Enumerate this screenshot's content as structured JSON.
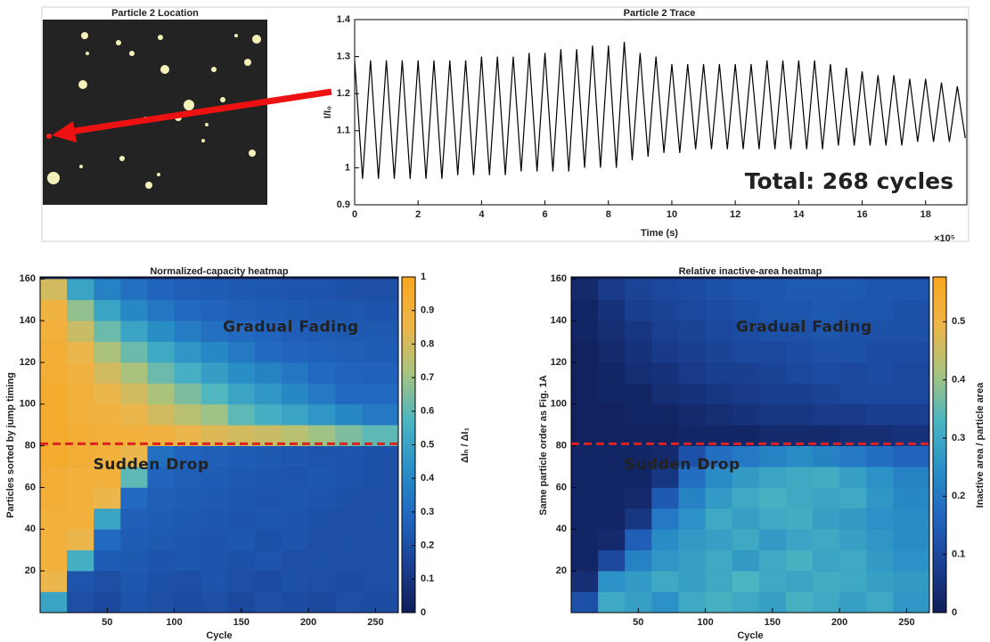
{
  "chart_data": [
    {
      "type": "image",
      "title": "Particle 2 Location"
    },
    {
      "type": "line",
      "title": "Particle 2 Trace",
      "x_label": "Time (s)",
      "y_label": "I/I₀",
      "x_scale_label": "×10⁵",
      "annotation": "Total: 268 cycles",
      "xlim": [
        0,
        19.3
      ],
      "ylim": [
        0.9,
        1.4
      ],
      "xticks": [
        0,
        2,
        4,
        6,
        8,
        10,
        12,
        14,
        16,
        18
      ],
      "yticks": [
        0.9,
        1,
        1.1,
        1.2,
        1.3,
        1.4
      ],
      "color": "#000000",
      "x": [
        0,
        0.25,
        0.5,
        0.75,
        1,
        1.25,
        1.5,
        1.75,
        2,
        2.25,
        2.5,
        2.75,
        3,
        3.25,
        3.5,
        3.75,
        4,
        4.25,
        4.5,
        4.75,
        5,
        5.25,
        5.5,
        5.75,
        6,
        6.25,
        6.5,
        6.75,
        7,
        7.25,
        7.5,
        7.75,
        8,
        8.25,
        8.5,
        8.75,
        9,
        9.25,
        9.5,
        9.75,
        10,
        10.25,
        10.5,
        10.75,
        11,
        11.25,
        11.5,
        11.75,
        12,
        12.25,
        12.5,
        12.75,
        13,
        13.25,
        13.5,
        13.75,
        14,
        14.25,
        14.5,
        14.75,
        15,
        15.25,
        15.5,
        15.75,
        16,
        16.25,
        16.5,
        16.75,
        17,
        17.25,
        17.5,
        17.75,
        18,
        18.25,
        18.5,
        18.75,
        19,
        19.25
      ],
      "values": [
        1.29,
        0.97,
        1.29,
        0.97,
        1.29,
        0.97,
        1.29,
        0.97,
        1.29,
        0.97,
        1.29,
        0.97,
        1.29,
        0.98,
        1.29,
        0.98,
        1.3,
        0.98,
        1.3,
        0.98,
        1.3,
        0.99,
        1.31,
        0.99,
        1.31,
        0.99,
        1.32,
        0.99,
        1.32,
        1,
        1.33,
        1,
        1.33,
        1,
        1.34,
        1.02,
        1.31,
        1.03,
        1.3,
        1.04,
        1.28,
        1.04,
        1.28,
        1.05,
        1.28,
        1.05,
        1.28,
        1.05,
        1.28,
        1.05,
        1.28,
        1.05,
        1.29,
        1.05,
        1.29,
        1.05,
        1.29,
        1.05,
        1.29,
        1.05,
        1.28,
        1.06,
        1.27,
        1.06,
        1.26,
        1.06,
        1.25,
        1.06,
        1.25,
        1.06,
        1.24,
        1.07,
        1.24,
        1.07,
        1.23,
        1.07,
        1.22,
        1.08
      ]
    },
    {
      "type": "heatmap",
      "title": "Normalized-capacity heatmap",
      "x_label": "Cycle",
      "y_label": "Particles sorted by jump timing",
      "colorbar_label": "ΔIₙ / ΔI₁",
      "xlim": [
        0,
        267
      ],
      "ylim": [
        0,
        161
      ],
      "xticks": [
        50,
        100,
        150,
        200,
        250
      ],
      "yticks": [
        20,
        40,
        60,
        80,
        100,
        120,
        140,
        160
      ],
      "clim": [
        0,
        1
      ],
      "cticks": [
        0,
        0.1,
        0.2,
        0.3,
        0.4,
        0.5,
        0.6,
        0.7,
        0.8,
        0.9,
        1
      ],
      "colormap": [
        "#101e58",
        "#1a3f92",
        "#2166c0",
        "#2a90c6",
        "#4bb5c2",
        "#a8c37f",
        "#eeb548",
        "#f8a620"
      ],
      "reference_line": {
        "value": 81,
        "color": "#e02020"
      },
      "annotations": [
        {
          "text": "Gradual Fading",
          "color": "#ffffff"
        },
        {
          "text": "Sudden Drop",
          "color": "#e02020"
        }
      ],
      "x_edges": [
        0,
        20,
        40,
        60,
        80,
        100,
        120,
        140,
        160,
        180,
        200,
        220,
        240,
        267
      ],
      "y_edges": [
        0,
        10,
        20,
        30,
        40,
        50,
        60,
        70,
        80,
        90,
        100,
        110,
        120,
        130,
        140,
        150,
        160
      ],
      "z": [
        [
          0.5,
          0.2,
          0.18,
          0.22,
          0.2,
          0.19,
          0.2,
          0.18,
          0.2,
          0.19,
          0.18,
          0.2,
          0.19
        ],
        [
          0.85,
          0.22,
          0.2,
          0.23,
          0.21,
          0.2,
          0.22,
          0.2,
          0.19,
          0.21,
          0.2,
          0.19,
          0.2
        ],
        [
          0.9,
          0.55,
          0.25,
          0.24,
          0.22,
          0.23,
          0.22,
          0.21,
          0.22,
          0.2,
          0.21,
          0.2,
          0.2
        ],
        [
          0.9,
          0.85,
          0.3,
          0.25,
          0.24,
          0.23,
          0.22,
          0.23,
          0.21,
          0.22,
          0.2,
          0.21,
          0.2
        ],
        [
          0.9,
          0.9,
          0.5,
          0.26,
          0.25,
          0.24,
          0.23,
          0.22,
          0.23,
          0.22,
          0.21,
          0.2,
          0.21
        ],
        [
          0.92,
          0.9,
          0.85,
          0.3,
          0.26,
          0.25,
          0.24,
          0.23,
          0.22,
          0.23,
          0.22,
          0.21,
          0.2
        ],
        [
          0.92,
          0.9,
          0.9,
          0.6,
          0.28,
          0.26,
          0.25,
          0.24,
          0.23,
          0.22,
          0.23,
          0.22,
          0.21
        ],
        [
          0.95,
          0.92,
          0.9,
          0.85,
          0.32,
          0.28,
          0.26,
          0.25,
          0.24,
          0.23,
          0.22,
          0.22,
          0.21
        ],
        [
          0.95,
          0.92,
          0.9,
          0.9,
          0.88,
          0.85,
          0.82,
          0.8,
          0.78,
          0.75,
          0.7,
          0.65,
          0.6
        ],
        [
          0.95,
          0.9,
          0.88,
          0.85,
          0.8,
          0.75,
          0.7,
          0.6,
          0.55,
          0.5,
          0.45,
          0.4,
          0.35
        ],
        [
          0.95,
          0.9,
          0.85,
          0.8,
          0.72,
          0.65,
          0.58,
          0.5,
          0.45,
          0.4,
          0.35,
          0.3,
          0.3
        ],
        [
          0.92,
          0.88,
          0.8,
          0.72,
          0.62,
          0.55,
          0.48,
          0.42,
          0.38,
          0.34,
          0.3,
          0.28,
          0.27
        ],
        [
          0.92,
          0.85,
          0.72,
          0.62,
          0.52,
          0.45,
          0.4,
          0.35,
          0.3,
          0.28,
          0.27,
          0.26,
          0.25
        ],
        [
          0.9,
          0.78,
          0.62,
          0.5,
          0.42,
          0.36,
          0.32,
          0.3,
          0.28,
          0.26,
          0.25,
          0.24,
          0.24
        ],
        [
          0.88,
          0.68,
          0.5,
          0.4,
          0.34,
          0.3,
          0.28,
          0.26,
          0.25,
          0.24,
          0.23,
          0.23,
          0.22
        ],
        [
          0.8,
          0.5,
          0.38,
          0.32,
          0.28,
          0.26,
          0.25,
          0.24,
          0.23,
          0.22,
          0.22,
          0.21,
          0.2
        ]
      ]
    },
    {
      "type": "heatmap",
      "title": "Relative inactive-area heatmap",
      "x_label": "Cycle",
      "y_label": "Same particle order as Fig. 1A",
      "colorbar_label": "Inactive area / particle area",
      "xlim": [
        0,
        267
      ],
      "ylim": [
        0,
        161
      ],
      "xticks": [
        50,
        100,
        150,
        200,
        250
      ],
      "yticks": [
        20,
        40,
        60,
        80,
        100,
        120,
        140,
        160
      ],
      "clim": [
        0,
        0.577
      ],
      "cticks": [
        0,
        0.1,
        0.2,
        0.3,
        0.4,
        0.5
      ],
      "colormap": [
        "#101e58",
        "#1a3f92",
        "#2166c0",
        "#2a90c6",
        "#4bb5c2",
        "#a8c37f",
        "#eeb548",
        "#f8a620"
      ],
      "reference_line": {
        "value": 81,
        "color": "#e02020"
      },
      "annotations": [
        {
          "text": "Gradual Fading",
          "color": "#ffffff"
        },
        {
          "text": "Sudden Drop",
          "color": "#e02020"
        }
      ],
      "x_edges": [
        0,
        20,
        40,
        60,
        80,
        100,
        120,
        140,
        160,
        180,
        200,
        220,
        240,
        267
      ],
      "y_edges": [
        0,
        10,
        20,
        30,
        40,
        50,
        60,
        70,
        80,
        90,
        100,
        110,
        120,
        130,
        140,
        150,
        160
      ],
      "z": [
        [
          0.12,
          0.3,
          0.28,
          0.25,
          0.3,
          0.32,
          0.3,
          0.28,
          0.32,
          0.3,
          0.28,
          0.3,
          0.26
        ],
        [
          0.04,
          0.25,
          0.27,
          0.3,
          0.28,
          0.3,
          0.33,
          0.3,
          0.29,
          0.31,
          0.3,
          0.28,
          0.27
        ],
        [
          0.02,
          0.1,
          0.22,
          0.26,
          0.28,
          0.3,
          0.27,
          0.3,
          0.32,
          0.29,
          0.3,
          0.27,
          0.25
        ],
        [
          0.02,
          0.03,
          0.15,
          0.24,
          0.27,
          0.28,
          0.3,
          0.27,
          0.29,
          0.3,
          0.28,
          0.26,
          0.24
        ],
        [
          0.02,
          0.02,
          0.06,
          0.2,
          0.25,
          0.3,
          0.28,
          0.3,
          0.31,
          0.28,
          0.27,
          0.25,
          0.24
        ],
        [
          0.02,
          0.02,
          0.03,
          0.14,
          0.22,
          0.27,
          0.3,
          0.32,
          0.3,
          0.29,
          0.3,
          0.26,
          0.23
        ],
        [
          0.02,
          0.02,
          0.02,
          0.06,
          0.18,
          0.24,
          0.27,
          0.29,
          0.3,
          0.31,
          0.28,
          0.25,
          0.22
        ],
        [
          0.02,
          0.02,
          0.02,
          0.03,
          0.12,
          0.18,
          0.2,
          0.22,
          0.24,
          0.22,
          0.2,
          0.18,
          0.16
        ],
        [
          0.01,
          0.01,
          0.01,
          0.01,
          0.02,
          0.02,
          0.02,
          0.03,
          0.03,
          0.03,
          0.04,
          0.04,
          0.05
        ],
        [
          0.01,
          0.01,
          0.02,
          0.02,
          0.03,
          0.04,
          0.05,
          0.06,
          0.06,
          0.07,
          0.07,
          0.08,
          0.08
        ],
        [
          0.01,
          0.02,
          0.02,
          0.04,
          0.05,
          0.06,
          0.07,
          0.08,
          0.08,
          0.09,
          0.1,
          0.1,
          0.1
        ],
        [
          0.01,
          0.02,
          0.04,
          0.05,
          0.07,
          0.08,
          0.08,
          0.09,
          0.1,
          0.11,
          0.1,
          0.11,
          0.1
        ],
        [
          0.01,
          0.03,
          0.05,
          0.07,
          0.08,
          0.09,
          0.1,
          0.1,
          0.11,
          0.12,
          0.12,
          0.11,
          0.11
        ],
        [
          0.02,
          0.04,
          0.06,
          0.08,
          0.09,
          0.1,
          0.11,
          0.12,
          0.12,
          0.13,
          0.12,
          0.12,
          0.12
        ],
        [
          0.02,
          0.05,
          0.08,
          0.09,
          0.1,
          0.11,
          0.12,
          0.13,
          0.13,
          0.14,
          0.13,
          0.13,
          0.12
        ],
        [
          0.03,
          0.07,
          0.09,
          0.1,
          0.11,
          0.12,
          0.13,
          0.13,
          0.14,
          0.14,
          0.14,
          0.13,
          0.13
        ]
      ]
    }
  ]
}
